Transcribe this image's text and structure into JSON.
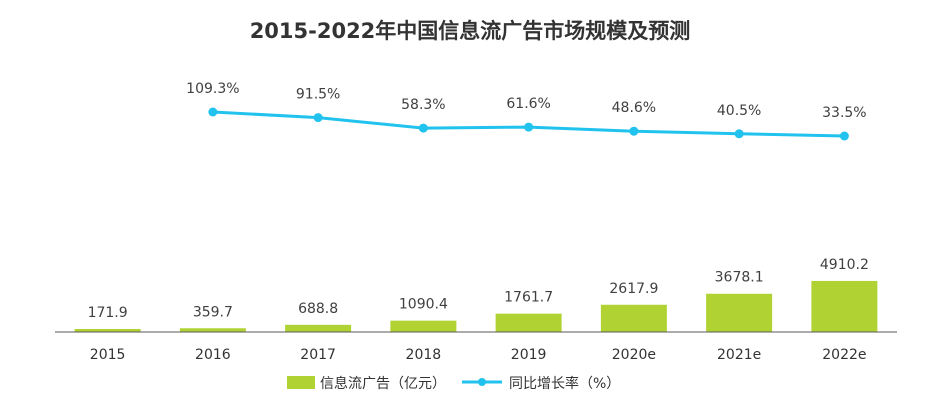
{
  "chart_data": {
    "type": "bar+line",
    "title": "2015-2022年中国信息流广告市场规模及预测",
    "categories": [
      "2015",
      "2016",
      "2017",
      "2018",
      "2019",
      "2020e",
      "2021e",
      "2022e"
    ],
    "series": [
      {
        "name": "信息流广告（亿元）",
        "type": "bar",
        "color": "#B0D232",
        "values": [
          171.9,
          359.7,
          688.8,
          1090.4,
          1761.7,
          2617.9,
          3678.1,
          4910.2
        ],
        "labels": [
          "171.9",
          "359.7",
          "688.8",
          "1090.4",
          "1761.7",
          "2617.9",
          "3678.1",
          "4910.2"
        ]
      },
      {
        "name": "同比增长率（%）",
        "type": "line",
        "color": "#21C3EE",
        "values": [
          null,
          109.3,
          91.5,
          58.3,
          61.6,
          48.6,
          40.5,
          33.5
        ],
        "labels": [
          "",
          "109.3%",
          "91.5%",
          "58.3%",
          "61.6%",
          "48.6%",
          "40.5%",
          "33.5%"
        ]
      }
    ],
    "legend_position": "bottom-center",
    "grid": false
  }
}
